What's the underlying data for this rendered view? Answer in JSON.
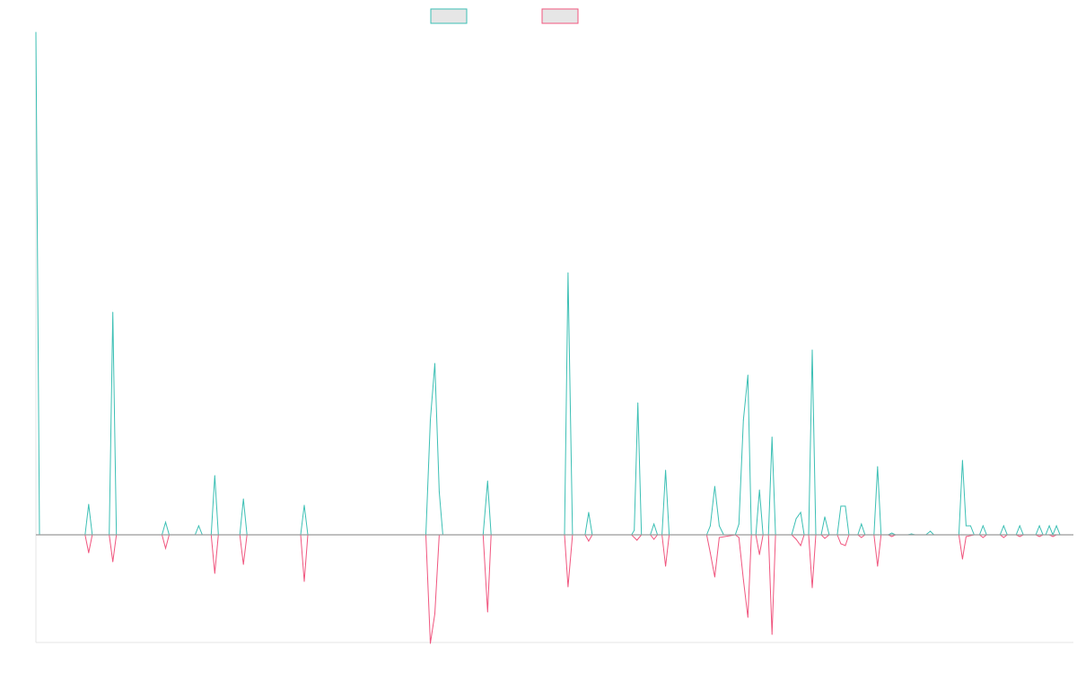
{
  "chart_data": {
    "type": "line",
    "legend": {
      "placement": "top-center",
      "entries": [
        {
          "name": "",
          "color": "#3bbfb4",
          "fill": "#e6e6e6"
        },
        {
          "name": "",
          "color": "#f0557e",
          "fill": "#e6e6e6"
        }
      ]
    },
    "grid": false,
    "x_range": [
      0,
      1160
    ],
    "y_range": [
      -120,
      560
    ],
    "baseline": 0,
    "series": [
      {
        "color": "#3bbfb4",
        "points": [
          [
            0,
            560
          ],
          [
            4,
            0
          ],
          [
            55,
            0
          ],
          [
            59,
            34
          ],
          [
            63,
            0
          ],
          [
            82,
            0
          ],
          [
            86,
            248
          ],
          [
            90,
            0
          ],
          [
            141,
            0
          ],
          [
            145,
            14
          ],
          [
            149,
            0
          ],
          [
            178,
            0
          ],
          [
            182,
            10
          ],
          [
            186,
            0
          ],
          [
            196,
            0
          ],
          [
            200,
            66
          ],
          [
            204,
            0
          ],
          [
            228,
            0
          ],
          [
            232,
            40
          ],
          [
            236,
            0
          ],
          [
            296,
            0
          ],
          [
            300,
            33
          ],
          [
            304,
            0
          ],
          [
            436,
            0
          ],
          [
            441,
            128
          ],
          [
            446,
            191
          ],
          [
            451,
            48
          ],
          [
            455,
            0
          ],
          [
            500,
            0
          ],
          [
            505,
            60
          ],
          [
            509,
            0
          ],
          [
            591,
            0
          ],
          [
            595,
            292
          ],
          [
            600,
            0
          ],
          [
            614,
            0
          ],
          [
            618,
            25
          ],
          [
            622,
            0
          ],
          [
            666,
            0
          ],
          [
            669,
            5
          ],
          [
            673,
            147
          ],
          [
            677,
            0
          ],
          [
            687,
            0
          ],
          [
            691,
            12
          ],
          [
            695,
            0
          ],
          [
            700,
            0
          ],
          [
            704,
            72
          ],
          [
            708,
            0
          ],
          [
            750,
            0
          ],
          [
            754,
            10
          ],
          [
            759,
            54
          ],
          [
            764,
            10
          ],
          [
            769,
            0
          ],
          [
            782,
            0
          ],
          [
            786,
            12
          ],
          [
            791,
            128
          ],
          [
            796,
            178
          ],
          [
            800,
            0
          ],
          [
            805,
            0
          ],
          [
            809,
            50
          ],
          [
            813,
            0
          ],
          [
            819,
            0
          ],
          [
            823,
            109
          ],
          [
            827,
            0
          ],
          [
            845,
            0
          ],
          [
            850,
            18
          ],
          [
            855,
            25
          ],
          [
            859,
            0
          ],
          [
            864,
            0
          ],
          [
            868,
            206
          ],
          [
            872,
            0
          ],
          [
            878,
            0
          ],
          [
            882,
            20
          ],
          [
            887,
            0
          ],
          [
            896,
            0
          ],
          [
            900,
            32
          ],
          [
            905,
            32
          ],
          [
            909,
            0
          ],
          [
            919,
            0
          ],
          [
            923,
            12
          ],
          [
            927,
            0
          ],
          [
            937,
            0
          ],
          [
            941,
            76
          ],
          [
            945,
            0
          ],
          [
            953,
            0
          ],
          [
            957,
            2
          ],
          [
            961,
            0
          ],
          [
            975,
            0
          ],
          [
            979,
            1
          ],
          [
            983,
            0
          ],
          [
            995,
            0
          ],
          [
            1000,
            4
          ],
          [
            1004,
            0
          ],
          [
            1032,
            0
          ],
          [
            1036,
            83
          ],
          [
            1040,
            10
          ],
          [
            1045,
            10
          ],
          [
            1049,
            0
          ],
          [
            1055,
            0
          ],
          [
            1059,
            10
          ],
          [
            1063,
            0
          ],
          [
            1078,
            0
          ],
          [
            1082,
            10
          ],
          [
            1086,
            0
          ],
          [
            1096,
            0
          ],
          [
            1100,
            10
          ],
          [
            1104,
            0
          ],
          [
            1118,
            0
          ],
          [
            1122,
            10
          ],
          [
            1126,
            0
          ],
          [
            1129,
            0
          ],
          [
            1133,
            10
          ],
          [
            1137,
            0
          ],
          [
            1137,
            0
          ],
          [
            1141,
            10
          ],
          [
            1145,
            0
          ],
          [
            1160,
            0
          ]
        ]
      },
      {
        "color": "#f0557e",
        "points": [
          [
            0,
            0
          ],
          [
            55,
            0
          ],
          [
            59,
            -20
          ],
          [
            63,
            0
          ],
          [
            82,
            0
          ],
          [
            86,
            -30
          ],
          [
            90,
            0
          ],
          [
            141,
            0
          ],
          [
            145,
            -15
          ],
          [
            149,
            0
          ],
          [
            196,
            0
          ],
          [
            200,
            -43
          ],
          [
            204,
            0
          ],
          [
            228,
            0
          ],
          [
            232,
            -33
          ],
          [
            236,
            0
          ],
          [
            296,
            0
          ],
          [
            300,
            -52
          ],
          [
            304,
            0
          ],
          [
            436,
            0
          ],
          [
            441,
            -121
          ],
          [
            446,
            -88
          ],
          [
            451,
            0
          ],
          [
            500,
            0
          ],
          [
            505,
            -86
          ],
          [
            509,
            0
          ],
          [
            591,
            0
          ],
          [
            595,
            -58
          ],
          [
            600,
            0
          ],
          [
            614,
            0
          ],
          [
            618,
            -7
          ],
          [
            622,
            0
          ],
          [
            666,
            0
          ],
          [
            672,
            -6
          ],
          [
            677,
            0
          ],
          [
            687,
            0
          ],
          [
            691,
            -5
          ],
          [
            695,
            0
          ],
          [
            700,
            0
          ],
          [
            704,
            -35
          ],
          [
            708,
            0
          ],
          [
            750,
            0
          ],
          [
            754,
            -20
          ],
          [
            759,
            -47
          ],
          [
            764,
            -3
          ],
          [
            782,
            0
          ],
          [
            786,
            -3
          ],
          [
            791,
            -50
          ],
          [
            796,
            -92
          ],
          [
            800,
            0
          ],
          [
            805,
            0
          ],
          [
            809,
            -22
          ],
          [
            813,
            0
          ],
          [
            819,
            0
          ],
          [
            823,
            -111
          ],
          [
            827,
            0
          ],
          [
            845,
            0
          ],
          [
            850,
            -5
          ],
          [
            855,
            -12
          ],
          [
            859,
            0
          ],
          [
            864,
            0
          ],
          [
            868,
            -59
          ],
          [
            872,
            0
          ],
          [
            878,
            0
          ],
          [
            882,
            -4
          ],
          [
            887,
            0
          ],
          [
            896,
            0
          ],
          [
            900,
            -10
          ],
          [
            905,
            -12
          ],
          [
            909,
            0
          ],
          [
            919,
            0
          ],
          [
            923,
            -3
          ],
          [
            927,
            0
          ],
          [
            937,
            0
          ],
          [
            941,
            -35
          ],
          [
            945,
            0
          ],
          [
            953,
            0
          ],
          [
            957,
            -2
          ],
          [
            961,
            0
          ],
          [
            1032,
            0
          ],
          [
            1036,
            -27
          ],
          [
            1040,
            -2
          ],
          [
            1049,
            0
          ],
          [
            1055,
            0
          ],
          [
            1059,
            -3
          ],
          [
            1063,
            0
          ],
          [
            1078,
            0
          ],
          [
            1082,
            -3
          ],
          [
            1086,
            0
          ],
          [
            1096,
            0
          ],
          [
            1100,
            -2
          ],
          [
            1104,
            0
          ],
          [
            1118,
            0
          ],
          [
            1122,
            -2
          ],
          [
            1126,
            0
          ],
          [
            1133,
            0
          ],
          [
            1137,
            -2
          ],
          [
            1141,
            0
          ],
          [
            1160,
            0
          ]
        ]
      }
    ]
  }
}
